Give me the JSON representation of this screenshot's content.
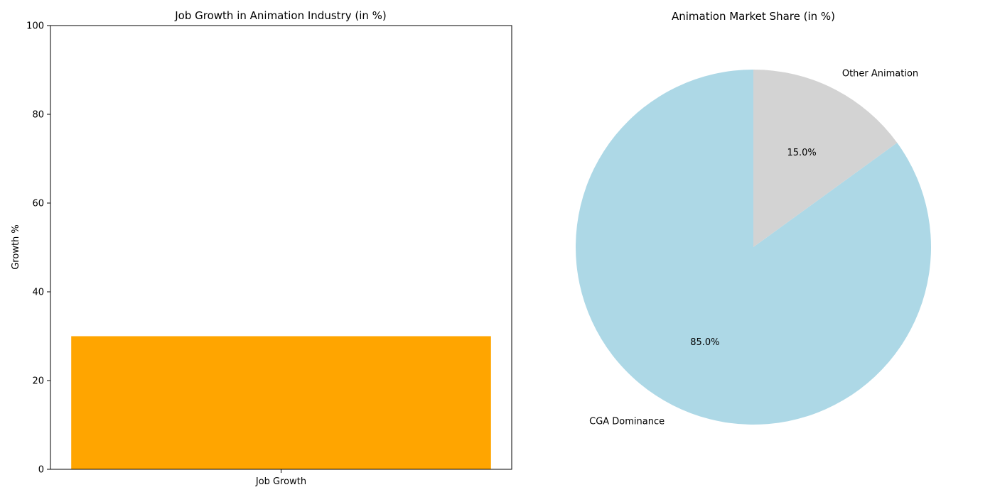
{
  "chart_data": [
    {
      "type": "bar",
      "title": "Job Growth in Animation Industry (in %)",
      "xlabel": "",
      "ylabel": "Growth %",
      "ylim": [
        0,
        100
      ],
      "yticks": [
        0,
        20,
        40,
        60,
        80,
        100
      ],
      "categories": [
        "Job Growth"
      ],
      "values": [
        30
      ],
      "bar_color": "#ffa500",
      "grid": false,
      "legend": "none"
    },
    {
      "type": "pie",
      "title": "Animation Market Share (in %)",
      "labels": [
        "CGA Dominance",
        "Other Animation"
      ],
      "values": [
        85,
        15
      ],
      "percent_labels": [
        "85.0%",
        "15.0%"
      ],
      "colors": [
        "#add8e6",
        "#d3d3d3"
      ],
      "legend": "none"
    }
  ]
}
